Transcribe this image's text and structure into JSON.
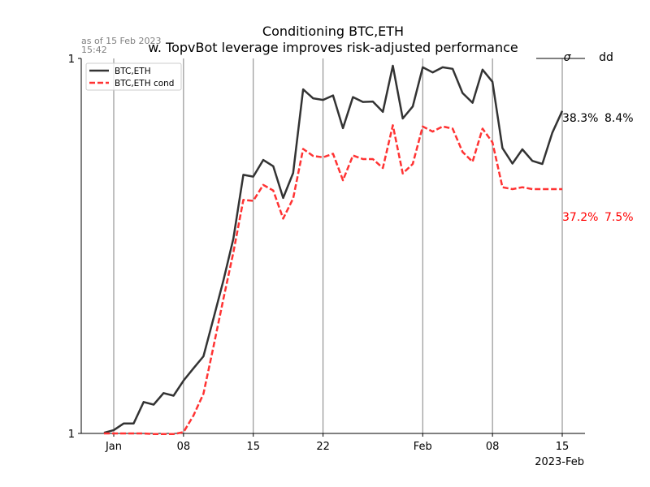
{
  "chart_data": {
    "type": "line",
    "title": "Conditioning BTC,ETH",
    "subtitle": "w. TopvBot leverage improves risk-adjusted performance",
    "as_of_line1": "as of 15 Feb 2023",
    "as_of_line2": "15:42",
    "x_start": "2023-01-01",
    "x_end": "2023-02-15",
    "x_ticks": [
      {
        "date": "2023-01-01",
        "label": "Jan"
      },
      {
        "date": "2023-01-08",
        "label": "08"
      },
      {
        "date": "2023-01-15",
        "label": "15"
      },
      {
        "date": "2023-01-22",
        "label": "22"
      },
      {
        "date": "2023-02-01",
        "label": "Feb"
      },
      {
        "date": "2023-02-08",
        "label": "08"
      },
      {
        "date": "2023-02-15",
        "label": "15"
      }
    ],
    "xaxis_year_label": "2023-Feb",
    "y_scale": "log",
    "ylim": [
      1.0,
      1.75
    ],
    "y_ticks": [
      {
        "value": 1.0,
        "label": "1"
      },
      {
        "value": 1.75,
        "label": "1"
      }
    ],
    "grid": "vertical",
    "legend_position": "top-left",
    "column_headers": {
      "vol": "σ",
      "drawdown": "dd"
    },
    "series": [
      {
        "name": "BTC,ETH",
        "color": "#333333",
        "style": "solid",
        "stats": {
          "vol": "38.3%",
          "dd": "8.4%"
        },
        "points": [
          [
            "2023-12-31",
            1.001
          ],
          [
            "2023-01-01",
            1.005
          ],
          [
            "2023-01-02",
            1.015
          ],
          [
            "2023-01-03",
            1.015
          ],
          [
            "2023-01-04",
            1.048
          ],
          [
            "2023-01-05",
            1.044
          ],
          [
            "2023-01-06",
            1.062
          ],
          [
            "2023-01-07",
            1.058
          ],
          [
            "2023-01-08",
            1.082
          ],
          [
            "2023-01-09",
            1.102
          ],
          [
            "2023-01-10",
            1.122
          ],
          [
            "2023-01-11",
            1.187
          ],
          [
            "2023-01-12",
            1.256
          ],
          [
            "2023-01-13",
            1.337
          ],
          [
            "2023-01-14",
            1.471
          ],
          [
            "2023-01-15",
            1.467
          ],
          [
            "2023-01-16",
            1.504
          ],
          [
            "2023-01-17",
            1.49
          ],
          [
            "2023-01-18",
            1.421
          ],
          [
            "2023-01-19",
            1.475
          ],
          [
            "2023-01-20",
            1.671
          ],
          [
            "2023-01-21",
            1.649
          ],
          [
            "2023-01-22",
            1.645
          ],
          [
            "2023-01-23",
            1.656
          ],
          [
            "2023-01-24",
            1.577
          ],
          [
            "2023-01-25",
            1.652
          ],
          [
            "2023-01-26",
            1.64
          ],
          [
            "2023-01-27",
            1.641
          ],
          [
            "2023-01-28",
            1.616
          ],
          [
            "2023-01-29",
            1.731
          ],
          [
            "2023-01-30",
            1.6
          ],
          [
            "2023-01-31",
            1.629
          ],
          [
            "2023-02-01",
            1.727
          ],
          [
            "2023-02-02",
            1.714
          ],
          [
            "2023-02-03",
            1.727
          ],
          [
            "2023-02-04",
            1.723
          ],
          [
            "2023-02-05",
            1.662
          ],
          [
            "2023-02-06",
            1.638
          ],
          [
            "2023-02-07",
            1.721
          ],
          [
            "2023-02-08",
            1.69
          ],
          [
            "2023-02-09",
            1.531
          ],
          [
            "2023-02-10",
            1.496
          ],
          [
            "2023-02-11",
            1.528
          ],
          [
            "2023-02-12",
            1.502
          ],
          [
            "2023-02-13",
            1.495
          ],
          [
            "2023-02-14",
            1.566
          ],
          [
            "2023-02-15",
            1.618
          ]
        ]
      },
      {
        "name": "BTC,ETH cond",
        "color": "#ff3333",
        "style": "dashed",
        "stats": {
          "vol": "37.2%",
          "dd": "7.5%"
        },
        "points": [
          [
            "2023-12-31",
            1.0
          ],
          [
            "2023-01-01",
            1.0
          ],
          [
            "2023-01-02",
            1.0
          ],
          [
            "2023-01-03",
            1.0
          ],
          [
            "2023-01-04",
            1.0
          ],
          [
            "2023-01-05",
            0.999
          ],
          [
            "2023-01-06",
            0.999
          ],
          [
            "2023-01-07",
            0.999
          ],
          [
            "2023-01-08",
            1.002
          ],
          [
            "2023-01-09",
            1.027
          ],
          [
            "2023-01-10",
            1.061
          ],
          [
            "2023-01-11",
            1.138
          ],
          [
            "2023-01-12",
            1.222
          ],
          [
            "2023-01-13",
            1.31
          ],
          [
            "2023-01-14",
            1.417
          ],
          [
            "2023-01-15",
            1.415
          ],
          [
            "2023-01-16",
            1.449
          ],
          [
            "2023-01-17",
            1.437
          ],
          [
            "2023-01-18",
            1.378
          ],
          [
            "2023-01-19",
            1.42
          ],
          [
            "2023-01-20",
            1.529
          ],
          [
            "2023-01-21",
            1.513
          ],
          [
            "2023-01-22",
            1.51
          ],
          [
            "2023-01-23",
            1.518
          ],
          [
            "2023-01-24",
            1.459
          ],
          [
            "2023-01-25",
            1.514
          ],
          [
            "2023-01-26",
            1.506
          ],
          [
            "2023-01-27",
            1.506
          ],
          [
            "2023-01-28",
            1.486
          ],
          [
            "2023-01-29",
            1.584
          ],
          [
            "2023-01-30",
            1.474
          ],
          [
            "2023-01-31",
            1.495
          ],
          [
            "2023-02-01",
            1.581
          ],
          [
            "2023-02-02",
            1.569
          ],
          [
            "2023-02-03",
            1.581
          ],
          [
            "2023-02-04",
            1.576
          ],
          [
            "2023-02-05",
            1.522
          ],
          [
            "2023-02-06",
            1.5
          ],
          [
            "2023-02-07",
            1.576
          ],
          [
            "2023-02-08",
            1.544
          ],
          [
            "2023-02-09",
            1.444
          ],
          [
            "2023-02-10",
            1.44
          ],
          [
            "2023-02-11",
            1.444
          ],
          [
            "2023-02-12",
            1.44
          ],
          [
            "2023-02-13",
            1.44
          ],
          [
            "2023-02-14",
            1.44
          ],
          [
            "2023-02-15",
            1.44
          ]
        ]
      }
    ]
  }
}
